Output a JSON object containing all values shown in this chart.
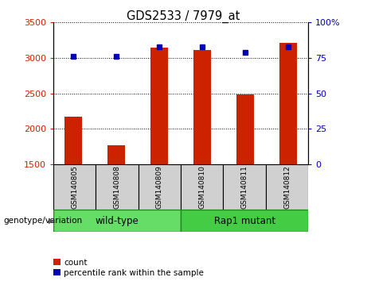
{
  "title": "GDS2533 / 7979_at",
  "samples": [
    "GSM140805",
    "GSM140808",
    "GSM140809",
    "GSM140810",
    "GSM140811",
    "GSM140812"
  ],
  "counts": [
    2175,
    1775,
    3150,
    3110,
    2490,
    3210
  ],
  "percentiles": [
    76,
    76,
    83,
    83,
    79,
    83
  ],
  "ylim_left": [
    1500,
    3500
  ],
  "ylim_right": [
    0,
    100
  ],
  "yticks_left": [
    1500,
    2000,
    2500,
    3000,
    3500
  ],
  "yticks_right": [
    0,
    25,
    50,
    75,
    100
  ],
  "bar_color": "#cc2200",
  "dot_color": "#0000bb",
  "sample_box_color": "#d0d0d0",
  "group_wt_color": "#66dd66",
  "group_rap_color": "#44cc44",
  "group_arrow_label": "genotype/variation",
  "legend_count": "count",
  "legend_percentile": "percentile rank within the sample",
  "wt_label": "wild-type",
  "rap_label": "Rap1 mutant"
}
